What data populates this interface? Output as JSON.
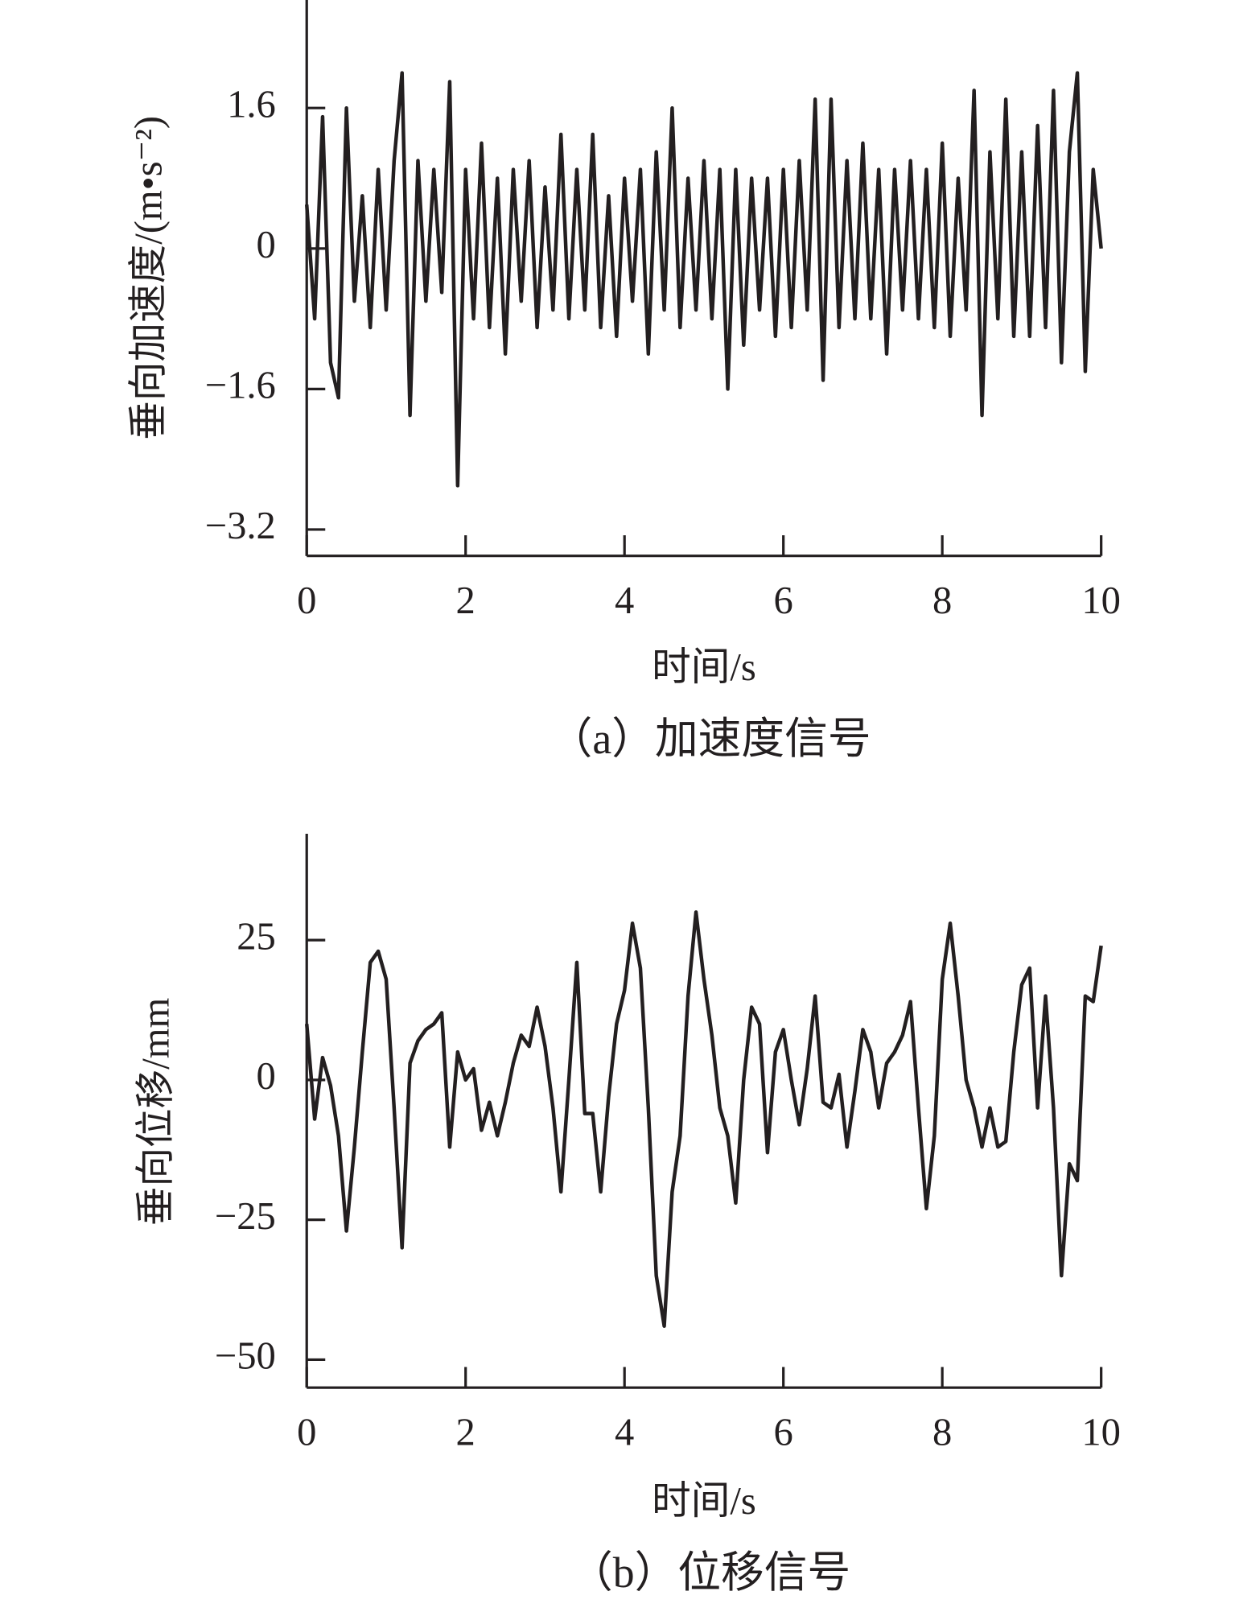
{
  "chart_data": [
    {
      "type": "line",
      "caption": "（a）加速度信号",
      "xlabel": "时间/s",
      "ylabel": "垂向加速度/(m•s⁻²)",
      "xlim": [
        0,
        10
      ],
      "xticks": [
        0,
        2,
        4,
        6,
        8,
        10
      ],
      "ylim": [
        -3.5,
        2.83
      ],
      "yticks": [
        1.6,
        0,
        {
          "value": -1.6,
          "label": "−1.6"
        },
        {
          "value": -3.2,
          "label": "−3.2"
        }
      ],
      "x": [
        0,
        0.1,
        0.2,
        0.3,
        0.4,
        0.5,
        0.6,
        0.7,
        0.8,
        0.9,
        1,
        1.1,
        1.2,
        1.3,
        1.4,
        1.5,
        1.6,
        1.7,
        1.8,
        1.9,
        2,
        2.1,
        2.2,
        2.3,
        2.4,
        2.5,
        2.6,
        2.7,
        2.8,
        2.9,
        3,
        3.1,
        3.2,
        3.3,
        3.4,
        3.5,
        3.6,
        3.7,
        3.8,
        3.9,
        4,
        4.1,
        4.2,
        4.3,
        4.4,
        4.5,
        4.6,
        4.7,
        4.8,
        4.9,
        5,
        5.1,
        5.2,
        5.3,
        5.4,
        5.5,
        5.6,
        5.7,
        5.8,
        5.9,
        6,
        6.1,
        6.2,
        6.3,
        6.4,
        6.5,
        6.6,
        6.7,
        6.8,
        6.9,
        7,
        7.1,
        7.2,
        7.3,
        7.4,
        7.5,
        7.6,
        7.7,
        7.8,
        7.9,
        8,
        8.1,
        8.2,
        8.3,
        8.4,
        8.5,
        8.6,
        8.7,
        8.8,
        8.9,
        9,
        9.1,
        9.2,
        9.3,
        9.4,
        9.5,
        9.6,
        9.7,
        9.8,
        9.9,
        10
      ],
      "series": [
        {
          "color": "#231f20",
          "values": [
            0.5,
            -0.8,
            1.5,
            -1.3,
            -1.7,
            1.6,
            -0.6,
            0.6,
            -0.9,
            0.9,
            -0.7,
            1.0,
            2.0,
            -1.9,
            1.0,
            -0.6,
            0.9,
            -0.5,
            1.9,
            -2.7,
            0.9,
            -0.8,
            1.2,
            -0.9,
            0.8,
            -1.2,
            0.9,
            -0.6,
            1.0,
            -0.9,
            0.7,
            -0.7,
            1.3,
            -0.8,
            0.9,
            -0.7,
            1.3,
            -0.9,
            0.6,
            -1.0,
            0.8,
            -0.6,
            0.9,
            -1.2,
            1.1,
            -0.7,
            1.6,
            -0.9,
            0.8,
            -0.7,
            1.0,
            -0.8,
            0.9,
            -1.6,
            0.9,
            -1.1,
            0.8,
            -0.7,
            0.8,
            -1.0,
            0.9,
            -0.9,
            1.0,
            -0.7,
            1.7,
            -1.5,
            1.7,
            -0.9,
            1.0,
            -0.8,
            1.2,
            -0.8,
            0.9,
            -1.2,
            0.9,
            -0.7,
            1.0,
            -0.8,
            0.9,
            -0.9,
            1.2,
            -1.0,
            0.8,
            -0.7,
            1.8,
            -1.9,
            1.1,
            -0.8,
            1.7,
            -1.0,
            1.1,
            -1.0,
            1.4,
            -0.9,
            1.8,
            -1.3,
            1.1,
            2.0,
            -1.4,
            0.9,
            0.0
          ]
        }
      ]
    },
    {
      "type": "line",
      "caption": "（b）位移信号",
      "xlabel": "时间/s",
      "ylabel": "垂向位移/mm",
      "xlim": [
        0,
        10
      ],
      "xticks": [
        0,
        2,
        4,
        6,
        8,
        10
      ],
      "ylim": [
        -55,
        44
      ],
      "yticks": [
        25,
        0,
        {
          "value": -25,
          "label": "−25"
        },
        {
          "value": -50,
          "label": "−50"
        }
      ],
      "x": [
        0,
        0.1,
        0.2,
        0.3,
        0.4,
        0.5,
        0.6,
        0.7,
        0.8,
        0.9,
        1,
        1.1,
        1.2,
        1.3,
        1.4,
        1.5,
        1.6,
        1.7,
        1.8,
        1.9,
        2,
        2.1,
        2.2,
        2.3,
        2.4,
        2.5,
        2.6,
        2.7,
        2.8,
        2.9,
        3,
        3.1,
        3.2,
        3.3,
        3.4,
        3.5,
        3.6,
        3.7,
        3.8,
        3.9,
        4,
        4.1,
        4.2,
        4.3,
        4.4,
        4.5,
        4.6,
        4.7,
        4.8,
        4.9,
        5,
        5.1,
        5.2,
        5.3,
        5.4,
        5.5,
        5.6,
        5.7,
        5.8,
        5.9,
        6,
        6.1,
        6.2,
        6.3,
        6.4,
        6.5,
        6.6,
        6.7,
        6.8,
        6.9,
        7,
        7.1,
        7.2,
        7.3,
        7.4,
        7.5,
        7.6,
        7.7,
        7.8,
        7.9,
        8,
        8.1,
        8.2,
        8.3,
        8.4,
        8.5,
        8.6,
        8.7,
        8.8,
        8.9,
        9,
        9.1,
        9.2,
        9.3,
        9.4,
        9.5,
        9.6,
        9.7,
        9.8,
        9.9,
        10
      ],
      "series": [
        {
          "color": "#231f20",
          "values": [
            10,
            -7,
            4,
            -1,
            -10,
            -27,
            -12,
            5,
            21,
            23,
            18,
            -5,
            -30,
            3,
            7,
            9,
            10,
            12,
            -12,
            5,
            0,
            2,
            -9,
            -4,
            -10,
            -4,
            3,
            8,
            6,
            13,
            6,
            -5,
            -20,
            0,
            21,
            -6,
            -6,
            -20,
            -3,
            10,
            16,
            28,
            20,
            -5,
            -35,
            -44,
            -20,
            -10,
            15,
            30,
            18,
            8,
            -5,
            -10,
            -22,
            0,
            13,
            10,
            -13,
            5,
            9,
            0,
            -8,
            2,
            15,
            -4,
            -5,
            1,
            -12,
            -2,
            9,
            5,
            -5,
            3,
            5,
            8,
            14,
            -5,
            -23,
            -10,
            18,
            28,
            15,
            0,
            -5,
            -12,
            -5,
            -12,
            -11,
            5,
            17,
            20,
            -5,
            15,
            -5,
            -35,
            -15,
            -18,
            15,
            14,
            24
          ]
        }
      ]
    }
  ]
}
